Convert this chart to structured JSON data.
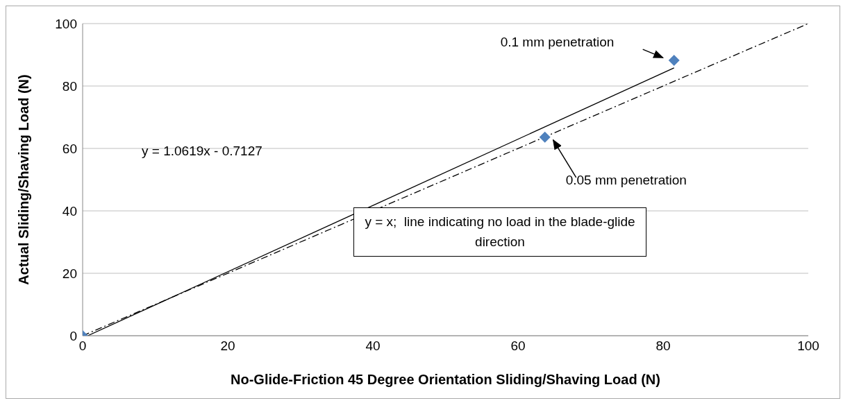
{
  "chart_data": {
    "type": "scatter",
    "xlabel": "No-Glide-Friction 45 Degree Orientation Sliding/Shaving Load (N)",
    "ylabel": "Actual Sliding/Shaving Load (N)",
    "xlim": [
      0,
      100
    ],
    "ylim": [
      0,
      100
    ],
    "xticks": [
      0,
      20,
      40,
      60,
      80,
      100
    ],
    "yticks": [
      0,
      20,
      40,
      60,
      80,
      100
    ],
    "grid": "y",
    "series": [
      {
        "x": [
          0,
          63.7,
          81.5
        ],
        "values": [
          0,
          63.6,
          88.2
        ],
        "color": "#4f81bd",
        "marker": "diamond"
      },
      {
        "type": "line",
        "x": [
          0.7,
          81.5
        ],
        "values": [
          0,
          85.8
        ],
        "color": "#000000",
        "marker": "none",
        "line_style": "solid"
      },
      {
        "type": "line",
        "x": [
          0,
          100
        ],
        "values": [
          0,
          100
        ],
        "color": "#000000",
        "marker": "none",
        "line_style": "dashed"
      }
    ],
    "annotations": [
      "0.1 mm penetration",
      "0.05 mm penetration",
      "y = 1.0619x - 0.7127",
      "y = x;  line indicating no load in the blade-glide direction"
    ]
  }
}
